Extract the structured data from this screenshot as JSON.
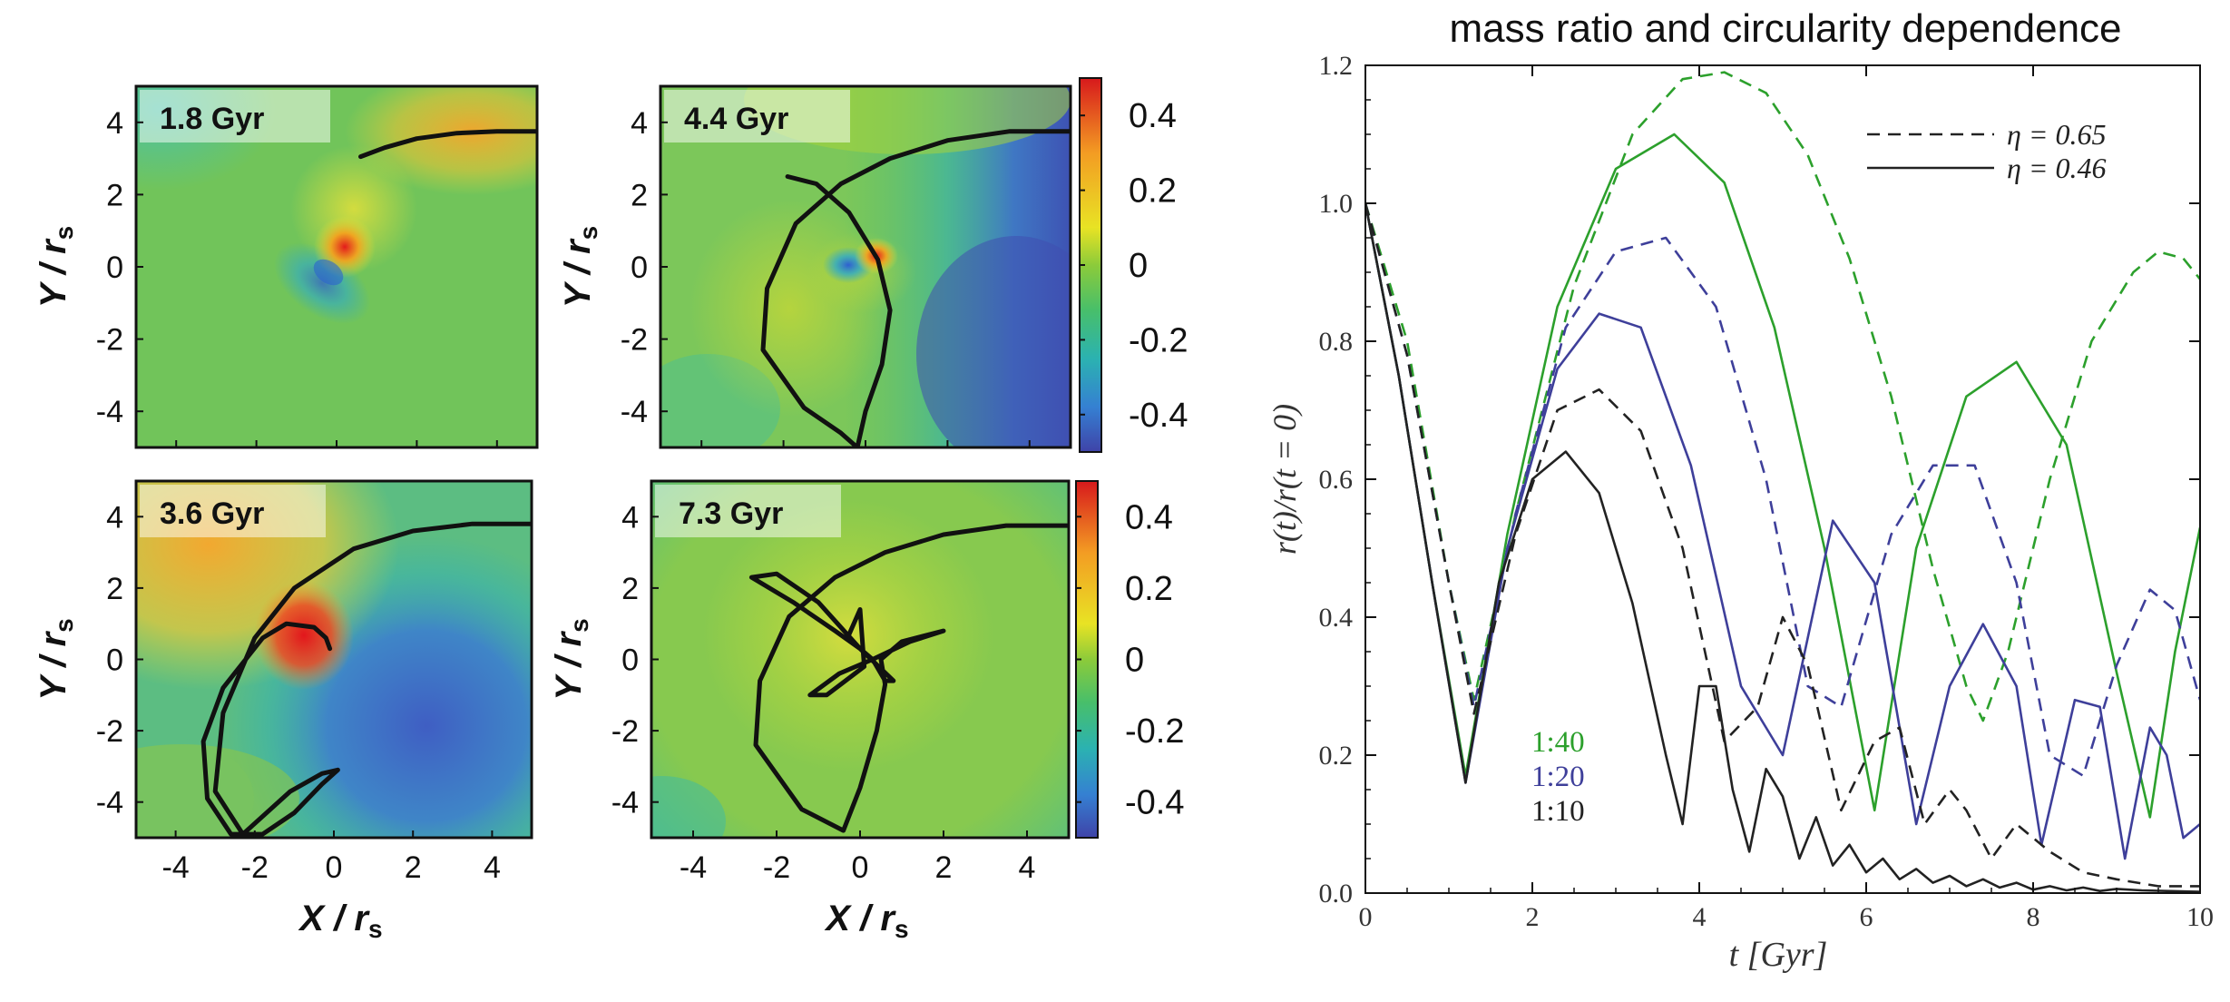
{
  "chart_data": [
    {
      "type": "heatmap",
      "panel": "top-left",
      "time_label": "1.8 Gyr",
      "xlabel": "X / r_s",
      "ylabel": "Y / r_s",
      "xlim": [
        -5,
        5
      ],
      "ylim": [
        -5,
        5
      ],
      "xticks": [
        -4,
        -2,
        0,
        2,
        4
      ],
      "yticks": [
        -4,
        -2,
        0,
        2,
        4
      ],
      "orbit": [
        [
          0.6,
          3.05
        ],
        [
          1.2,
          3.3
        ],
        [
          2.0,
          3.55
        ],
        [
          3.0,
          3.7
        ],
        [
          4.0,
          3.75
        ],
        [
          5.0,
          3.75
        ]
      ]
    },
    {
      "type": "heatmap",
      "panel": "top-right",
      "time_label": "4.4 Gyr",
      "xlabel": "X / r_s",
      "ylabel": "Y / r_s",
      "xlim": [
        -5,
        5
      ],
      "ylim": [
        -5,
        5
      ],
      "xticks": [
        -4,
        -2,
        0,
        2,
        4
      ],
      "yticks": [
        -4,
        -2,
        0,
        2,
        4
      ],
      "colorbar": {
        "range": [
          -0.5,
          0.5
        ],
        "ticks": [
          0.4,
          0.2,
          0,
          -0.2,
          -0.4
        ],
        "tick_labels": [
          "0.4",
          "0.2",
          "0",
          "-0.2",
          "-0.4"
        ]
      },
      "orbit": [
        [
          -1.9,
          2.5
        ],
        [
          -1.2,
          2.3
        ],
        [
          -0.4,
          1.5
        ],
        [
          0.3,
          0.2
        ],
        [
          0.6,
          -1.2
        ],
        [
          0.4,
          -2.7
        ],
        [
          0.0,
          -4.0
        ],
        [
          -0.2,
          -5.0
        ],
        [
          -0.6,
          -4.6
        ],
        [
          -1.5,
          -3.9
        ],
        [
          -2.5,
          -2.3
        ],
        [
          -2.4,
          -0.6
        ],
        [
          -1.7,
          1.2
        ],
        [
          -0.6,
          2.3
        ],
        [
          0.6,
          3.0
        ],
        [
          2.0,
          3.5
        ],
        [
          3.5,
          3.75
        ],
        [
          5.0,
          3.75
        ]
      ]
    },
    {
      "type": "heatmap",
      "panel": "bottom-left",
      "time_label": "3.6 Gyr",
      "xlabel": "X / r_s",
      "ylabel": "Y / r_s",
      "xlim": [
        -5,
        5
      ],
      "ylim": [
        -5,
        5
      ],
      "xticks": [
        -4,
        -2,
        0,
        2,
        4
      ],
      "yticks": [
        -4,
        -2,
        0,
        2,
        4
      ],
      "orbit": [
        [
          -0.1,
          0.3
        ],
        [
          -0.2,
          0.6
        ],
        [
          -0.5,
          0.9
        ],
        [
          -1.2,
          1.0
        ],
        [
          -1.8,
          0.6
        ],
        [
          -2.8,
          -0.8
        ],
        [
          -3.3,
          -2.3
        ],
        [
          -3.2,
          -3.9
        ],
        [
          -2.6,
          -4.9
        ],
        [
          -1.8,
          -4.9
        ],
        [
          -1.0,
          -4.3
        ],
        [
          -0.3,
          -3.5
        ],
        [
          0.1,
          -3.1
        ],
        [
          -0.3,
          -3.2
        ],
        [
          -1.1,
          -3.7
        ],
        [
          -2.3,
          -4.9
        ],
        [
          -3.0,
          -3.7
        ],
        [
          -2.8,
          -1.5
        ],
        [
          -2.0,
          0.6
        ],
        [
          -1.0,
          2.0
        ],
        [
          0.5,
          3.1
        ],
        [
          2.0,
          3.6
        ],
        [
          3.5,
          3.8
        ],
        [
          5.0,
          3.8
        ]
      ]
    },
    {
      "type": "heatmap",
      "panel": "bottom-right",
      "time_label": "7.3 Gyr",
      "xlabel": "X / r_s",
      "ylabel": "Y / r_s",
      "xlim": [
        -5,
        5
      ],
      "ylim": [
        -5,
        5
      ],
      "xticks": [
        -4,
        -2,
        0,
        2,
        4
      ],
      "yticks": [
        -4,
        -2,
        0,
        2,
        4
      ],
      "colorbar": {
        "range": [
          -0.5,
          0.5
        ],
        "ticks": [
          0.4,
          0.2,
          0,
          -0.2,
          -0.4
        ],
        "tick_labels": [
          "0.4",
          "0.2",
          "0",
          "-0.2",
          "-0.4"
        ]
      },
      "orbit": [
        [
          0.0,
          0.3
        ],
        [
          -0.6,
          0.8
        ],
        [
          -1.6,
          1.6
        ],
        [
          -2.6,
          2.3
        ],
        [
          -2.0,
          2.4
        ],
        [
          -1.0,
          1.6
        ],
        [
          0.0,
          0.3
        ],
        [
          0.8,
          -0.6
        ],
        [
          0.6,
          -0.6
        ],
        [
          0.3,
          0.0
        ],
        [
          -0.5,
          -0.4
        ],
        [
          -1.2,
          -1.0
        ],
        [
          -0.8,
          -1.0
        ],
        [
          0.1,
          -0.2
        ],
        [
          0.0,
          1.4
        ],
        [
          -0.3,
          0.6
        ],
        [
          0.3,
          0.0
        ],
        [
          1.2,
          0.5
        ],
        [
          2.0,
          0.8
        ],
        [
          1.0,
          0.5
        ],
        [
          0.5,
          0.0
        ],
        [
          0.6,
          -0.7
        ],
        [
          0.4,
          -2.0
        ],
        [
          0.0,
          -3.6
        ],
        [
          -0.4,
          -4.8
        ],
        [
          -1.4,
          -4.2
        ],
        [
          -2.5,
          -2.4
        ],
        [
          -2.4,
          -0.6
        ],
        [
          -1.7,
          1.2
        ],
        [
          -0.6,
          2.3
        ],
        [
          0.6,
          3.0
        ],
        [
          2.0,
          3.5
        ],
        [
          3.5,
          3.75
        ],
        [
          5.0,
          3.75
        ]
      ]
    },
    {
      "type": "line",
      "title": "mass ratio and circularity dependence",
      "xlabel": "t [Gyr]",
      "ylabel": "r(t)/r(t = 0)",
      "xlim": [
        0,
        10
      ],
      "ylim": [
        0,
        1.2
      ],
      "xticks": [
        0,
        2,
        4,
        6,
        8,
        10
      ],
      "xtick_labels": [
        "0",
        "2",
        "4",
        "6",
        "8",
        "10"
      ],
      "yticks": [
        0,
        0.2,
        0.4,
        0.6,
        0.8,
        1.0,
        1.2
      ],
      "ytick_labels": [
        "0.0",
        "0.2",
        "0.4",
        "0.6",
        "0.8",
        "1.0",
        "1.2"
      ],
      "legend": {
        "position": "top-right",
        "entries": [
          {
            "label": "η = 0.65",
            "style": "dashed"
          },
          {
            "label": "η = 0.46",
            "style": "solid"
          }
        ]
      },
      "mass_labels": [
        {
          "text": "1:40",
          "color": "#2ca02c"
        },
        {
          "text": "1:20",
          "color": "#3e3f9a"
        },
        {
          "text": "1:10",
          "color": "#222222"
        }
      ],
      "series": [
        {
          "name": "1:40 η=0.65",
          "color": "#2ca02c",
          "style": "dashed",
          "x": [
            0,
            0.5,
            1.0,
            1.3,
            1.8,
            2.5,
            3.2,
            3.8,
            4.3,
            4.8,
            5.3,
            5.8,
            6.3,
            6.8,
            7.2,
            7.4,
            7.7,
            8.2,
            8.7,
            9.2,
            9.5,
            9.8,
            10.0
          ],
          "y": [
            1.0,
            0.8,
            0.45,
            0.28,
            0.55,
            0.88,
            1.1,
            1.18,
            1.19,
            1.16,
            1.07,
            0.92,
            0.72,
            0.47,
            0.3,
            0.25,
            0.35,
            0.6,
            0.8,
            0.9,
            0.93,
            0.92,
            0.89
          ]
        },
        {
          "name": "1:40 η=0.46",
          "color": "#2ca02c",
          "style": "solid",
          "x": [
            0,
            0.4,
            0.8,
            1.2,
            1.7,
            2.3,
            3.0,
            3.7,
            4.3,
            4.9,
            5.5,
            6.1,
            6.6,
            7.2,
            7.8,
            8.4,
            9.0,
            9.4,
            9.7,
            10.0
          ],
          "y": [
            1.0,
            0.75,
            0.45,
            0.17,
            0.52,
            0.85,
            1.05,
            1.1,
            1.03,
            0.82,
            0.5,
            0.12,
            0.5,
            0.72,
            0.77,
            0.65,
            0.32,
            0.11,
            0.35,
            0.53
          ]
        },
        {
          "name": "1:20 η=0.65",
          "color": "#3e3f9a",
          "style": "dashed",
          "x": [
            0,
            0.5,
            1.0,
            1.3,
            1.8,
            2.4,
            3.0,
            3.6,
            4.2,
            4.8,
            5.3,
            5.7,
            6.3,
            6.8,
            7.3,
            7.8,
            8.2,
            8.6,
            9.0,
            9.4,
            9.7,
            10.0
          ],
          "y": [
            1.0,
            0.78,
            0.45,
            0.27,
            0.55,
            0.82,
            0.93,
            0.95,
            0.85,
            0.6,
            0.3,
            0.27,
            0.52,
            0.62,
            0.62,
            0.45,
            0.2,
            0.17,
            0.33,
            0.44,
            0.41,
            0.28
          ]
        },
        {
          "name": "1:20 η=0.46",
          "color": "#3e3f9a",
          "style": "solid",
          "x": [
            0,
            0.4,
            0.8,
            1.2,
            1.7,
            2.3,
            2.8,
            3.3,
            3.9,
            4.5,
            5.0,
            5.6,
            6.1,
            6.6,
            7.0,
            7.4,
            7.8,
            8.1,
            8.5,
            8.8,
            9.1,
            9.4,
            9.6,
            9.8,
            10.0
          ],
          "y": [
            1.0,
            0.75,
            0.45,
            0.16,
            0.5,
            0.76,
            0.84,
            0.82,
            0.62,
            0.3,
            0.2,
            0.54,
            0.45,
            0.1,
            0.3,
            0.39,
            0.3,
            0.07,
            0.28,
            0.27,
            0.05,
            0.24,
            0.2,
            0.08,
            0.1
          ]
        },
        {
          "name": "1:10 η=0.65",
          "color": "#222222",
          "style": "dashed",
          "x": [
            0,
            0.5,
            1.0,
            1.3,
            1.8,
            2.3,
            2.8,
            3.3,
            3.8,
            4.3,
            4.7,
            5.0,
            5.3,
            5.7,
            6.1,
            6.4,
            6.7,
            7.0,
            7.2,
            7.5,
            7.8,
            8.2,
            8.6,
            9.0,
            9.5,
            10.0
          ],
          "y": [
            1.0,
            0.78,
            0.45,
            0.26,
            0.52,
            0.7,
            0.73,
            0.67,
            0.5,
            0.22,
            0.27,
            0.4,
            0.33,
            0.12,
            0.22,
            0.24,
            0.1,
            0.15,
            0.12,
            0.05,
            0.1,
            0.06,
            0.03,
            0.02,
            0.01,
            0.01
          ]
        },
        {
          "name": "1:10 η=0.46",
          "color": "#222222",
          "style": "solid",
          "x": [
            0,
            0.4,
            0.8,
            1.2,
            1.6,
            2.0,
            2.4,
            2.8,
            3.2,
            3.6,
            3.8,
            4.0,
            4.2,
            4.4,
            4.6,
            4.8,
            5.0,
            5.2,
            5.4,
            5.6,
            5.8,
            6.0,
            6.2,
            6.4,
            6.6,
            6.8,
            7.0,
            7.2,
            7.4,
            7.6,
            7.8,
            8.0,
            8.2,
            8.4,
            8.6,
            8.8,
            9.0,
            9.3,
            9.6,
            10.0
          ],
          "y": [
            1.0,
            0.75,
            0.45,
            0.16,
            0.45,
            0.6,
            0.64,
            0.58,
            0.42,
            0.2,
            0.1,
            0.3,
            0.3,
            0.15,
            0.06,
            0.18,
            0.14,
            0.05,
            0.11,
            0.04,
            0.07,
            0.03,
            0.05,
            0.02,
            0.035,
            0.015,
            0.025,
            0.01,
            0.02,
            0.008,
            0.015,
            0.005,
            0.01,
            0.004,
            0.008,
            0.003,
            0.006,
            0.004,
            0.003,
            0.002
          ]
        }
      ]
    }
  ]
}
